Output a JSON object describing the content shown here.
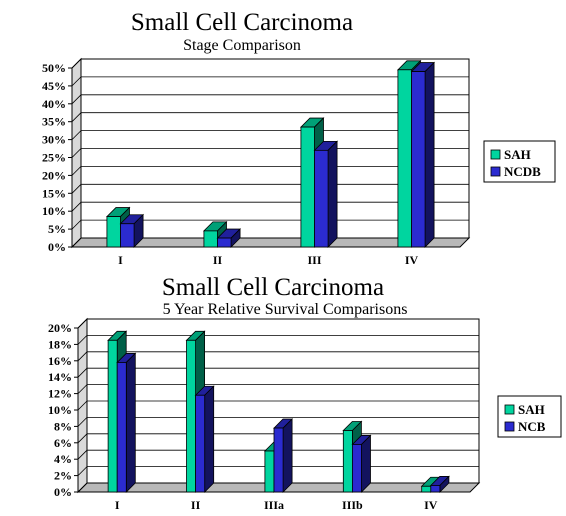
{
  "chart_data": [
    {
      "type": "bar",
      "title": "Small Cell Carcinoma",
      "subtitle": "Stage Comparison",
      "categories": [
        "I",
        "II",
        "III",
        "IV"
      ],
      "series": [
        {
          "name": "SAH",
          "values": [
            8.5,
            4.5,
            33.5,
            49.5
          ]
        },
        {
          "name": "NCDB",
          "values": [
            6.5,
            2.5,
            27,
            49
          ]
        }
      ],
      "ylim": [
        0,
        50
      ],
      "yticks": [
        0,
        5,
        10,
        15,
        20,
        25,
        30,
        35,
        40,
        45,
        50
      ],
      "ytick_format": "%",
      "legend": "right",
      "grid": true,
      "colors": {
        "SAH": "#00d59f",
        "NCDB": "#2b2bd0"
      }
    },
    {
      "type": "bar",
      "title": "Small Cell Carcinoma",
      "subtitle": "5 Year Relative Survival Comparisons",
      "categories": [
        "I",
        "II",
        "IIIa",
        "IIIb",
        "IV"
      ],
      "series": [
        {
          "name": "SAH",
          "values": [
            18.5,
            18.5,
            5,
            7.5,
            0.7
          ]
        },
        {
          "name": "NCB",
          "values": [
            15.8,
            11.8,
            7.8,
            5.8,
            0.8
          ]
        }
      ],
      "ylim": [
        0,
        20
      ],
      "yticks": [
        0,
        2,
        4,
        6,
        8,
        10,
        12,
        14,
        16,
        18,
        20
      ],
      "ytick_format": "%",
      "legend": "right",
      "grid": true,
      "colors": {
        "SAH": "#00d59f",
        "NCB": "#2b2bd0"
      }
    }
  ]
}
